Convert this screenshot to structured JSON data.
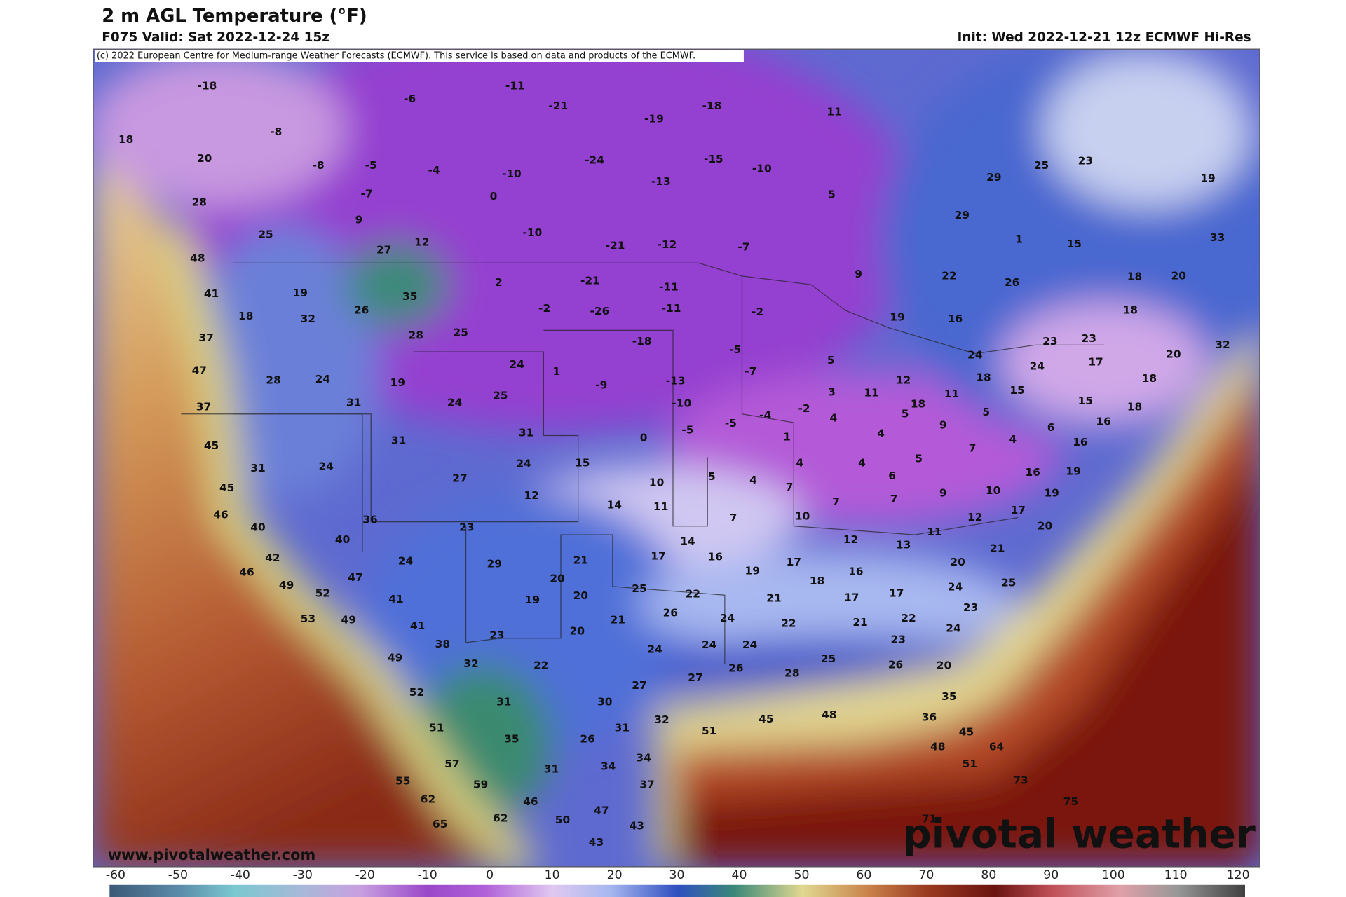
{
  "header": {
    "title": "2 m AGL Temperature (°F)",
    "valid": "F075 Valid: Sat 2022-12-24 15z",
    "init": "Init: Wed 2022-12-21 12z ECMWF Hi-Res",
    "copyright": "(c) 2022 European Centre for Medium-range Weather Forecasts (ECMWF). This service is based on data and products of the ECMWF."
  },
  "footer": {
    "website": "www.pivotalweather.com",
    "brand": "pivotal weather"
  },
  "colorbar": {
    "ticks": [
      -60,
      -50,
      -40,
      -30,
      -20,
      -10,
      0,
      10,
      20,
      30,
      40,
      50,
      60,
      70,
      80,
      90,
      100,
      110,
      120
    ]
  },
  "map_labels": [
    -18,
    -6,
    -11,
    -21,
    -19,
    -18,
    11,
    18,
    -8,
    20,
    -8,
    -5,
    -4,
    -10,
    -24,
    -15,
    -10,
    -7,
    0,
    -13,
    5,
    29,
    25,
    23,
    19,
    28,
    9,
    -10,
    -21,
    -12,
    -7,
    29,
    1,
    15,
    33,
    25,
    12,
    27,
    48,
    22,
    26,
    18,
    20,
    9,
    2,
    -21,
    -11,
    41,
    19,
    26,
    35,
    -2,
    -26,
    -11,
    -2,
    19,
    16,
    18,
    18,
    32,
    28,
    25,
    37,
    -18,
    -5,
    24,
    23,
    23,
    20,
    32,
    17,
    47,
    24,
    1,
    -9,
    -13,
    -7,
    5,
    12,
    18,
    15,
    18,
    28,
    24,
    19,
    24,
    11,
    18,
    11,
    15,
    18,
    37,
    31,
    24,
    25,
    -10,
    -2,
    3,
    -4,
    -5,
    -5,
    4,
    5,
    5,
    9,
    6,
    16,
    45,
    31,
    31,
    0,
    1,
    4,
    5,
    7,
    4,
    16,
    31,
    24,
    27,
    24,
    15,
    4,
    4,
    6,
    16,
    19,
    45,
    12,
    10,
    5,
    4,
    7,
    9,
    10,
    19,
    46,
    14,
    11,
    7,
    7,
    17,
    12,
    7,
    10,
    36,
    23,
    20,
    40,
    40,
    14,
    12,
    13,
    11,
    21,
    42,
    24,
    29,
    21,
    17,
    16,
    17,
    16,
    20,
    46,
    49,
    52,
    47,
    20,
    25,
    22,
    19,
    18,
    17,
    24,
    25,
    17,
    41,
    19,
    20,
    21,
    53,
    49,
    41,
    21,
    26,
    24,
    22,
    23,
    22,
    21,
    24,
    38,
    23,
    20,
    24,
    24,
    23,
    49,
    32,
    22,
    24,
    26,
    28,
    25,
    26,
    20,
    27,
    27,
    52,
    31,
    30,
    35,
    32,
    45,
    48,
    36,
    51,
    31,
    51,
    45,
    35,
    26,
    48,
    64,
    34,
    57,
    51,
    31,
    34,
    55,
    59,
    37,
    73,
    62,
    46,
    47,
    75,
    50,
    62,
    43,
    65,
    43,
    71
  ]
}
